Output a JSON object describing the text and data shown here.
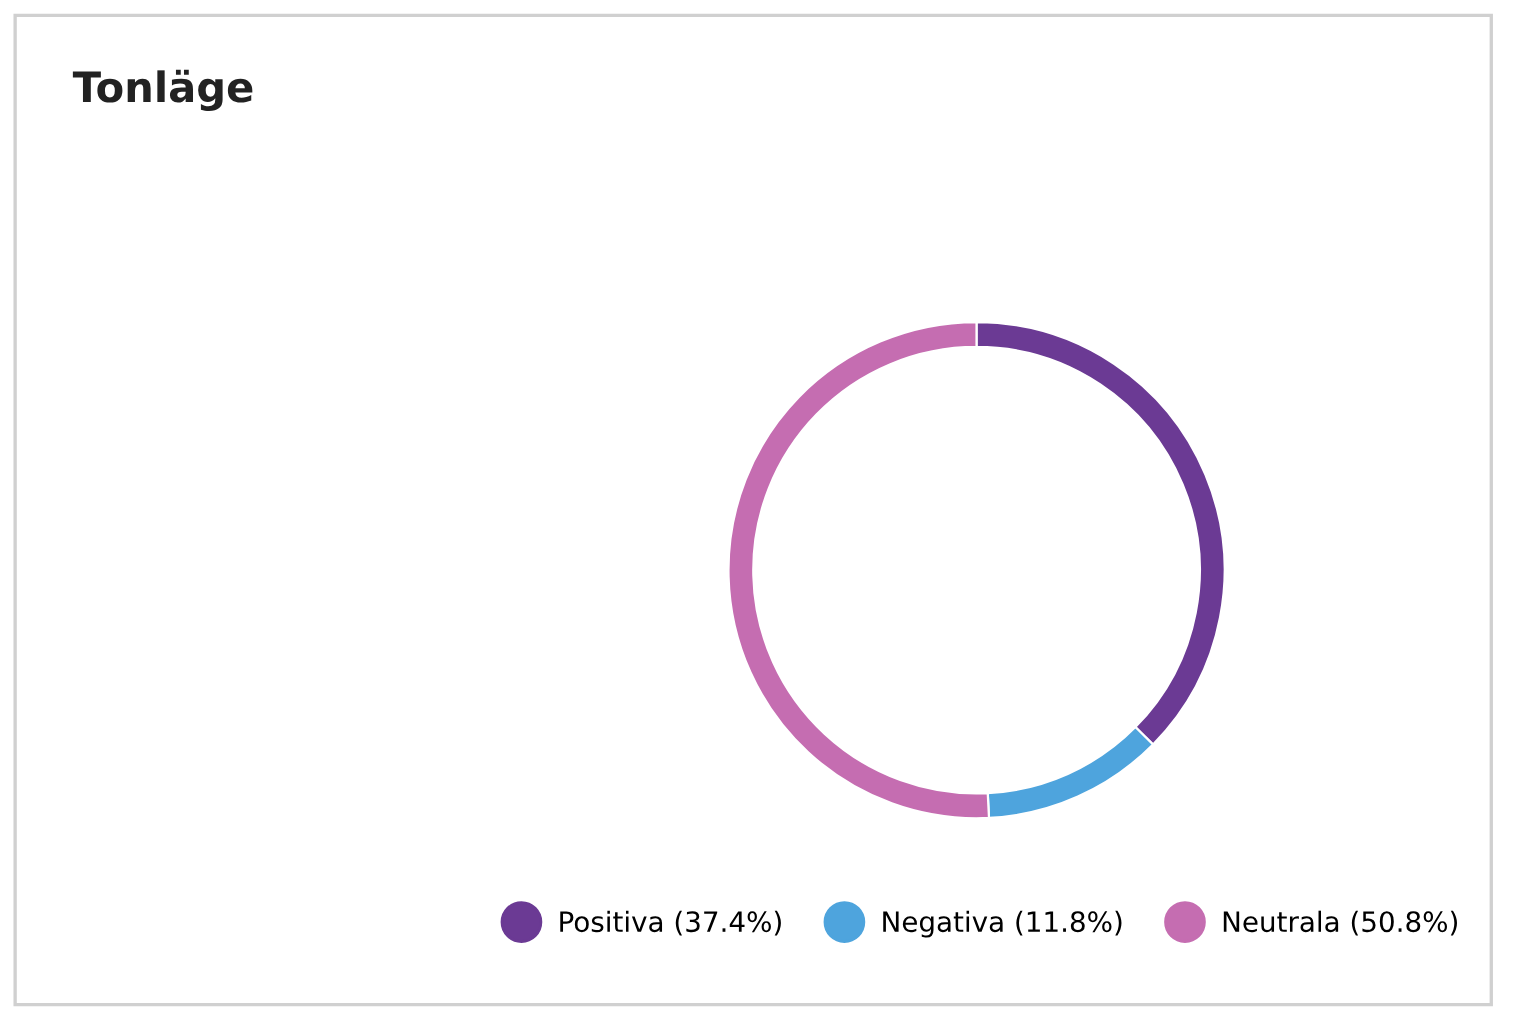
{
  "chart_data": {
    "type": "donut",
    "title": "Tonläge",
    "categories": [
      "Positiva (37.4%)",
      "Negativa (11.8%)",
      "Neutrala (50.8%)"
    ],
    "values": [
      37.4,
      11.8,
      50.8
    ],
    "colors": [
      "#6b3a94",
      "#4ea4dd",
      "#c56db1"
    ],
    "legend": "bottom"
  }
}
